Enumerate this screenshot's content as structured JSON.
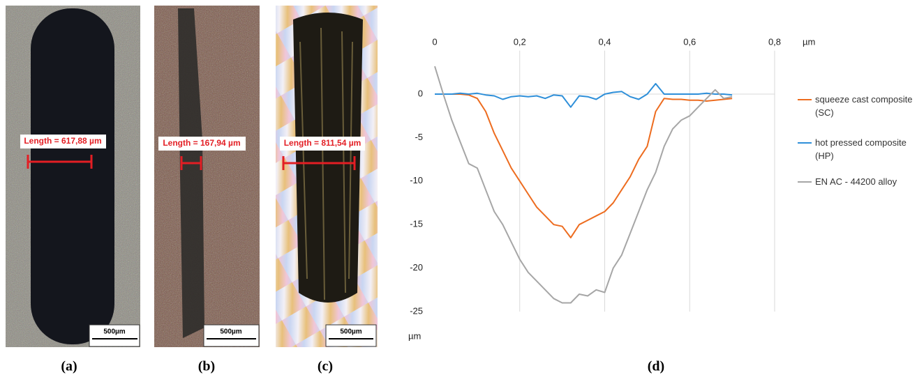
{
  "panels": [
    {
      "label": "(a)",
      "measurement": "Length = 617,88 µm",
      "scale_bar": "500µm"
    },
    {
      "label": "(b)",
      "measurement": "Length = 167,94 µm",
      "scale_bar": "500µm"
    },
    {
      "label": "(c)",
      "measurement": "Length = 811,54 µm",
      "scale_bar": "500µm"
    }
  ],
  "chart_data": {
    "type": "line",
    "caption": "(d)",
    "x_label": "µm",
    "y_label": "µm",
    "x": [
      0,
      0.02,
      0.04,
      0.06,
      0.08,
      0.1,
      0.12,
      0.14,
      0.16,
      0.18,
      0.2,
      0.22,
      0.24,
      0.26,
      0.28,
      0.3,
      0.32,
      0.34,
      0.36,
      0.38,
      0.4,
      0.42,
      0.44,
      0.46,
      0.48,
      0.5,
      0.52,
      0.54,
      0.56,
      0.58,
      0.6,
      0.62,
      0.64,
      0.66,
      0.68,
      0.7
    ],
    "xlim": [
      0,
      0.8
    ],
    "xticks": [
      0,
      {
        "value": 0.2,
        "label": "0,2"
      },
      {
        "value": 0.4,
        "label": "0,4"
      },
      {
        "value": 0.6,
        "label": "0,6"
      },
      {
        "value": 0.8,
        "label": "0,8"
      }
    ],
    "ylim": [
      -25,
      5
    ],
    "yticks": [
      0,
      -5,
      -10,
      -15,
      -20,
      -25
    ],
    "grid": true,
    "series": [
      {
        "name": "squeeze cast composite (SC)",
        "color": "#ed6c1f",
        "values": [
          0,
          0,
          0,
          0,
          -0.1,
          -0.5,
          -2,
          -4.5,
          -6.5,
          -8.5,
          -10,
          -11.5,
          -13,
          -14,
          -15,
          -15.2,
          -16.5,
          -15,
          -14.5,
          -14,
          -13.5,
          -12.5,
          -11,
          -9.5,
          -7.5,
          -6,
          -2,
          -0.5,
          -0.6,
          -0.6,
          -0.7,
          -0.7,
          -0.8,
          -0.7,
          -0.6,
          -0.5
        ]
      },
      {
        "name": "hot pressed composite (HP)",
        "color": "#2e8fd9",
        "values": [
          0,
          0,
          0,
          0.1,
          0,
          0.1,
          -0.1,
          -0.2,
          -0.6,
          -0.3,
          -0.2,
          -0.3,
          -0.2,
          -0.5,
          -0.1,
          -0.2,
          -1.5,
          -0.2,
          -0.3,
          -0.6,
          0,
          0.2,
          0.3,
          -0.3,
          -0.6,
          0,
          1.2,
          0,
          0,
          0,
          0,
          0,
          0.1,
          0,
          0,
          -0.1
        ]
      },
      {
        "name": "EN AC - 44200 alloy",
        "color": "#a6a6a6",
        "values": [
          3.2,
          0,
          -3,
          -5.5,
          -8,
          -8.5,
          -11,
          -13.5,
          -15,
          -17,
          -19,
          -20.5,
          -21.5,
          -22.5,
          -23.5,
          -24,
          -24,
          -23,
          -23.2,
          -22.5,
          -22.8,
          -20,
          -18.5,
          -16,
          -13.5,
          -11,
          -9,
          -6,
          -4,
          -3,
          -2.5,
          -1.5,
          -0.5,
          0.5,
          -0.5,
          -0.3
        ]
      }
    ]
  }
}
